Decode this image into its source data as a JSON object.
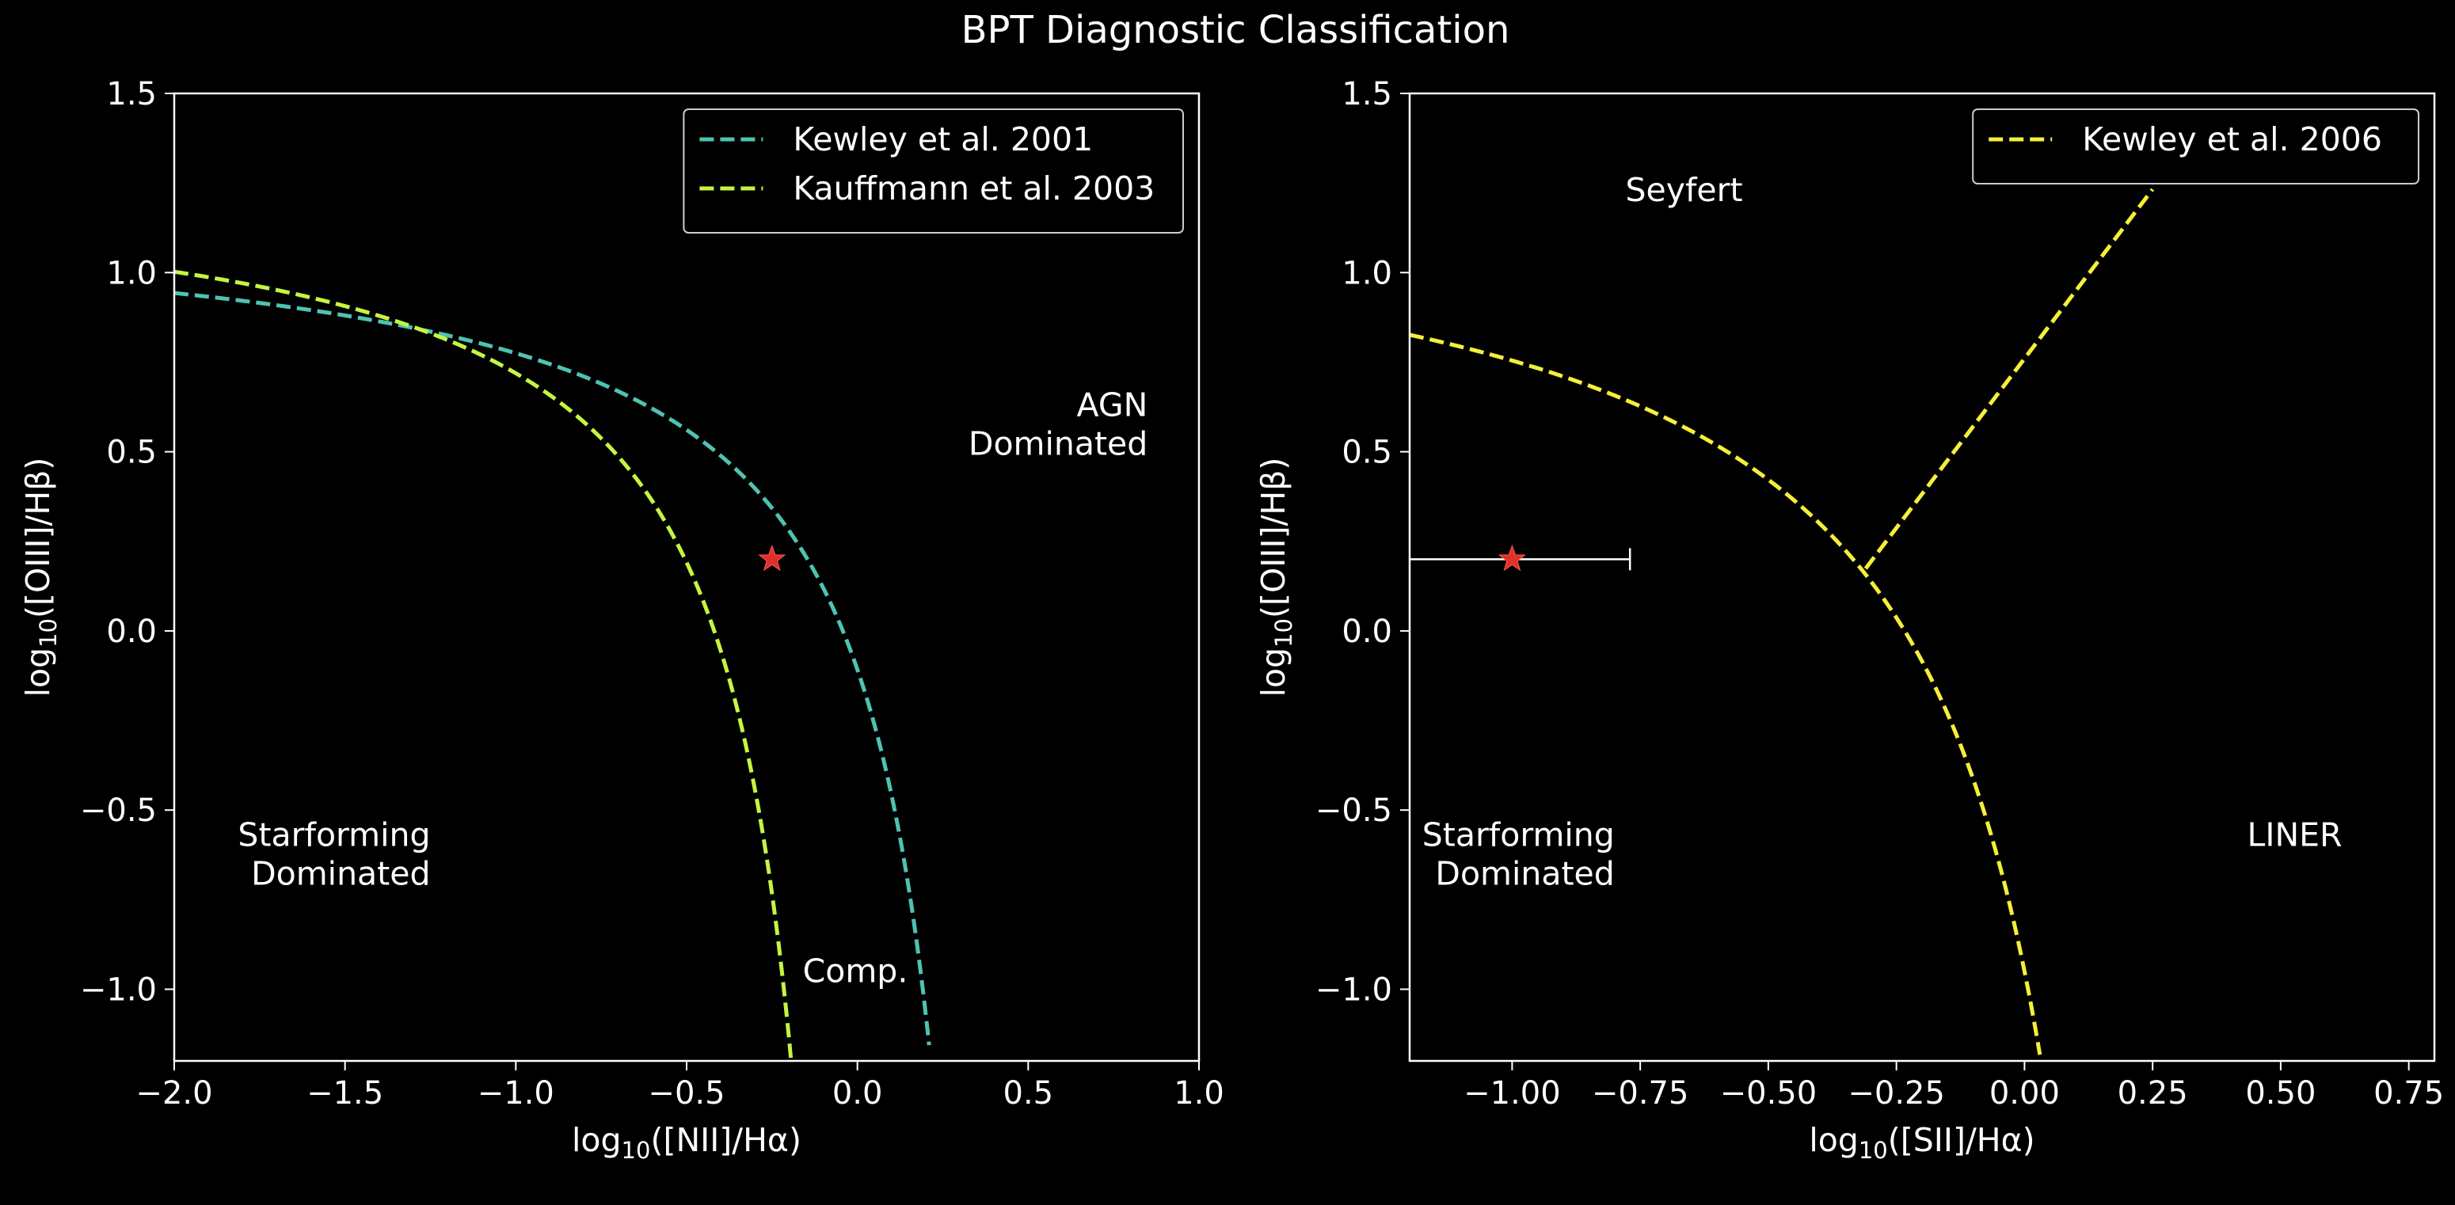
{
  "colors": {
    "background": "#000000",
    "foreground": "#ffffff",
    "kewley2001": "#4ec3b2",
    "kauffmann2003": "#c4f542",
    "kewley2006": "#f5ef3a",
    "galaxy": "#e0302a"
  },
  "chart_data": {
    "title": "BPT Diagnostic Classification",
    "panels": [
      {
        "type": "line",
        "xlabel": "log10([NII]/Hα)",
        "xlabel_parts": {
          "pre": "log",
          "sub": "10",
          "post": "([NII]/Hα)"
        },
        "ylabel_parts": {
          "pre": "log",
          "sub": "10",
          "post": "([OIII]/Hβ)"
        },
        "xlim": [
          -2.0,
          1.0
        ],
        "ylim": [
          -1.2,
          1.5
        ],
        "xticks": [
          -2.0,
          -1.5,
          -1.0,
          -0.5,
          0.0,
          0.5,
          1.0
        ],
        "xtick_labels": [
          "−2.0",
          "−1.5",
          "−1.0",
          "−0.5",
          "0.0",
          "0.5",
          "1.0"
        ],
        "yticks": [
          -1.0,
          -0.5,
          0.0,
          0.5,
          1.0,
          1.5
        ],
        "ytick_labels": [
          "−1.0",
          "−0.5",
          "0.0",
          "0.5",
          "1.0",
          "1.5"
        ],
        "legend_position": "top-right",
        "series": [
          {
            "name": "Kewley et al. 2001",
            "color_key": "kewley2001",
            "style": "dashed",
            "formula": "0.61/(x-0.47)+1.19",
            "x_range": [
              -2.0,
              0.21
            ]
          },
          {
            "name": "Kauffmann et al. 2003",
            "color_key": "kauffmann2003",
            "style": "dashed",
            "formula": "0.61/(x-0.05)+1.3",
            "x_range": [
              -2.0,
              -0.19
            ]
          }
        ],
        "point": {
          "x": -0.25,
          "y": 0.2,
          "marker": "star",
          "xerr": [
            0.0,
            0.0
          ]
        },
        "annotations": [
          {
            "lines": [
              "AGN",
              "Dominated"
            ],
            "x": 0.85,
            "y": 0.6,
            "align": "end"
          },
          {
            "lines": [
              "Starforming",
              "Dominated"
            ],
            "x": -1.25,
            "y": -0.6,
            "align": "end"
          },
          {
            "lines": [
              "Comp."
            ],
            "x": -0.16,
            "y": -0.98,
            "align": "start"
          }
        ]
      },
      {
        "type": "line",
        "xlabel": "log10([SII]/Hα)",
        "xlabel_parts": {
          "pre": "log",
          "sub": "10",
          "post": "([SII]/Hα)"
        },
        "ylabel_parts": {
          "pre": "log",
          "sub": "10",
          "post": "([OIII]/Hβ)"
        },
        "xlim": [
          -1.2,
          0.8
        ],
        "ylim": [
          -1.2,
          1.5
        ],
        "xticks": [
          -1.0,
          -0.75,
          -0.5,
          -0.25,
          0.0,
          0.25,
          0.5,
          0.75
        ],
        "xtick_labels": [
          "−1.00",
          "−0.75",
          "−0.50",
          "−0.25",
          "0.00",
          "0.25",
          "0.50",
          "0.75"
        ],
        "yticks": [
          -1.0,
          -0.5,
          0.0,
          0.5,
          1.0,
          1.5
        ],
        "ytick_labels": [
          "−1.0",
          "−0.5",
          "0.0",
          "0.5",
          "1.0",
          "1.5"
        ],
        "legend_position": "top-right",
        "series": [
          {
            "name": "Kewley et al. 2006",
            "color_key": "kewley2006",
            "style": "dashed",
            "formula": "0.72/(x-0.32)+1.30",
            "x_range": [
              -1.2,
              0.03
            ]
          },
          {
            "name": "",
            "color_key": "kewley2006",
            "style": "dashed",
            "formula": "1.89*x+0.76",
            "x_range": [
              -0.31,
              0.25
            ],
            "legend": false
          }
        ],
        "point": {
          "x": -1.0,
          "y": 0.2,
          "marker": "star",
          "xerr": [
            0.3,
            0.23
          ]
        },
        "annotations": [
          {
            "lines": [
              "Seyfert"
            ],
            "x": -0.55,
            "y": 1.2,
            "align": "end"
          },
          {
            "lines": [
              "Starforming",
              "Dominated"
            ],
            "x": -0.8,
            "y": -0.6,
            "align": "end"
          },
          {
            "lines": [
              "LINER"
            ],
            "x": 0.62,
            "y": -0.6,
            "align": "end"
          }
        ]
      }
    ]
  }
}
